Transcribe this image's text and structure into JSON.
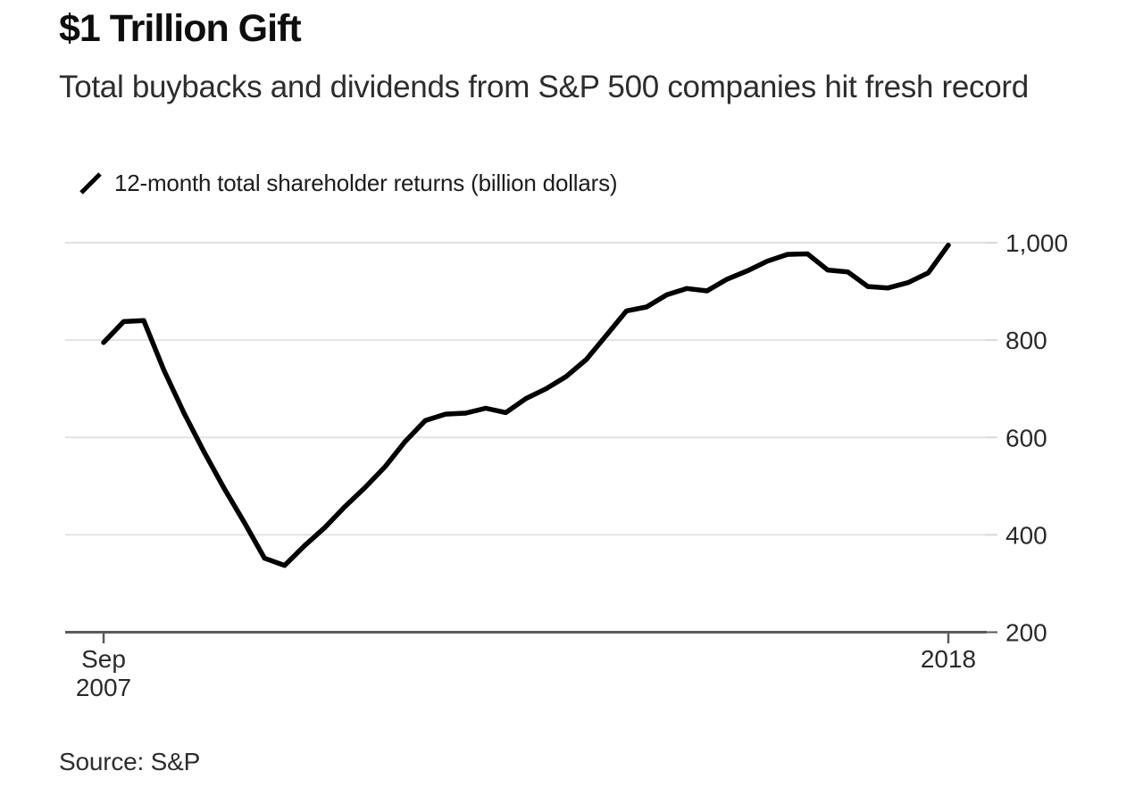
{
  "header": {
    "title": "$1 Trillion Gift",
    "subtitle": "Total buybacks and dividends from S&P 500 companies hit fresh record"
  },
  "legend": {
    "label": "12-month total shareholder returns (billion dollars)"
  },
  "footer": {
    "source": "Source: S&P"
  },
  "colors": {
    "line": "#000000",
    "grid": "#e2e2e2",
    "axis": "#5b5b5e",
    "tick_label": "#2a2a2a"
  },
  "chart_data": {
    "type": "line",
    "title": "$1 Trillion Gift",
    "subtitle": "Total buybacks and dividends from S&P 500 companies hit fresh record",
    "source": "Source: S&P",
    "legend_position": "top-left",
    "grid": "horizontal",
    "x": [
      "Sep 2007",
      "Dec 2007",
      "Mar 2008",
      "Jun 2008",
      "Sep 2008",
      "Dec 2008",
      "Mar 2009",
      "Jun 2009",
      "Sep 2009",
      "Dec 2009",
      "Mar 2010",
      "Jun 2010",
      "Sep 2010",
      "Dec 2010",
      "Mar 2011",
      "Jun 2011",
      "Sep 2011",
      "Dec 2011",
      "Mar 2012",
      "Jun 2012",
      "Sep 2012",
      "Dec 2012",
      "Mar 2013",
      "Jun 2013",
      "Sep 2013",
      "Dec 2013",
      "Mar 2014",
      "Jun 2014",
      "Sep 2014",
      "Dec 2014",
      "Mar 2015",
      "Jun 2015",
      "Sep 2015",
      "Dec 2015",
      "Mar 2016",
      "Jun 2016",
      "Sep 2016",
      "Dec 2016",
      "Mar 2017",
      "Jun 2017",
      "Sep 2017",
      "Dec 2017",
      "Mar 2018"
    ],
    "series": [
      {
        "name": "12-month total shareholder returns (billion dollars)",
        "color": "#000000",
        "values": [
          795,
          838,
          840,
          738,
          650,
          570,
          495,
          425,
          352,
          337,
          378,
          415,
          458,
          497,
          540,
          592,
          635,
          648,
          650,
          660,
          651,
          680,
          700,
          725,
          760,
          810,
          860,
          868,
          893,
          906,
          901,
          925,
          942,
          962,
          976,
          977,
          944,
          940,
          910,
          907,
          918,
          938,
          995
        ]
      }
    ],
    "x_axis": {
      "ticks": [
        {
          "lines": [
            "Sep",
            "2007"
          ]
        },
        {
          "lines": [
            "2018"
          ]
        }
      ]
    },
    "y_axis": {
      "ticks": [
        {
          "value": 200,
          "label": "200"
        },
        {
          "value": 400,
          "label": "400"
        },
        {
          "value": 600,
          "label": "600"
        },
        {
          "value": 800,
          "label": "800"
        },
        {
          "value": 1000,
          "label": "1,000"
        }
      ],
      "range": [
        200,
        1010
      ]
    }
  }
}
